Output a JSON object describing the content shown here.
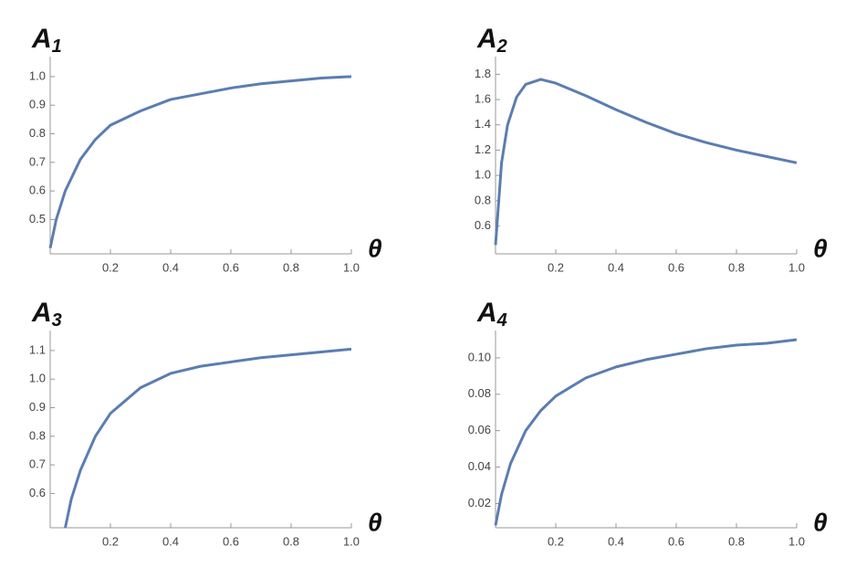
{
  "chart_data": [
    {
      "type": "line",
      "title": "A",
      "title_subscript": "1",
      "xlabel": "θ",
      "color": "#5b7db1",
      "x": [
        0,
        0.02,
        0.05,
        0.1,
        0.15,
        0.2,
        0.3,
        0.4,
        0.5,
        0.6,
        0.7,
        0.8,
        0.9,
        1.0
      ],
      "values": [
        0.4,
        0.5,
        0.6,
        0.71,
        0.78,
        0.83,
        0.88,
        0.92,
        0.94,
        0.96,
        0.975,
        0.985,
        0.995,
        1.0
      ],
      "xlim": [
        0,
        1.0
      ],
      "ylim": [
        0.38,
        1.07
      ],
      "xticks": [
        0.2,
        0.4,
        0.6,
        0.8,
        {
          "value": 1,
          "label": "1.0"
        }
      ],
      "yticks": [
        0.5,
        0.6,
        0.7,
        0.8,
        0.9,
        {
          "value": 1,
          "label": "1.0"
        }
      ]
    },
    {
      "type": "line",
      "title": "A",
      "title_subscript": "2",
      "xlabel": "θ",
      "color": "#5b7db1",
      "x": [
        0,
        0.02,
        0.04,
        0.07,
        0.1,
        0.15,
        0.2,
        0.3,
        0.4,
        0.5,
        0.6,
        0.7,
        0.8,
        0.9,
        1.0
      ],
      "values": [
        0.45,
        1.1,
        1.4,
        1.62,
        1.72,
        1.76,
        1.73,
        1.63,
        1.52,
        1.42,
        1.33,
        1.26,
        1.2,
        1.15,
        1.1
      ],
      "xlim": [
        0,
        1.0
      ],
      "ylim": [
        0.38,
        1.94
      ],
      "xticks": [
        0.2,
        0.4,
        0.6,
        0.8,
        {
          "value": 1,
          "label": "1.0"
        }
      ],
      "yticks": [
        0.6,
        0.8,
        {
          "value": 1,
          "label": "1.0"
        },
        1.2,
        1.4,
        1.6,
        1.8
      ]
    },
    {
      "type": "line",
      "title": "A",
      "title_subscript": "3",
      "xlabel": "θ",
      "color": "#5b7db1",
      "x": [
        0.05,
        0.07,
        0.1,
        0.15,
        0.2,
        0.3,
        0.4,
        0.5,
        0.6,
        0.7,
        0.8,
        0.9,
        1.0
      ],
      "values": [
        0.48,
        0.58,
        0.68,
        0.8,
        0.88,
        0.97,
        1.02,
        1.045,
        1.06,
        1.075,
        1.085,
        1.095,
        1.105
      ],
      "xlim": [
        0,
        1.0
      ],
      "ylim": [
        0.48,
        1.17
      ],
      "xticks": [
        0.2,
        0.4,
        0.6,
        0.8,
        {
          "value": 1,
          "label": "1.0"
        }
      ],
      "yticks": [
        0.6,
        0.7,
        0.8,
        0.9,
        {
          "value": 1,
          "label": "1.0"
        },
        1.1
      ]
    },
    {
      "type": "line",
      "title": "A",
      "title_subscript": "4",
      "xlabel": "θ",
      "color": "#5b7db1",
      "x": [
        0,
        0.02,
        0.05,
        0.1,
        0.15,
        0.2,
        0.3,
        0.4,
        0.5,
        0.6,
        0.7,
        0.8,
        0.9,
        1.0
      ],
      "values": [
        0.008,
        0.025,
        0.042,
        0.06,
        0.071,
        0.079,
        0.089,
        0.095,
        0.099,
        0.102,
        0.105,
        0.107,
        0.108,
        0.11
      ],
      "xlim": [
        0,
        1.0
      ],
      "ylim": [
        0.0067,
        0.115
      ],
      "xticks": [
        0.2,
        0.4,
        0.6,
        0.8,
        {
          "value": 1,
          "label": "1.0"
        }
      ],
      "yticks": [
        0.02,
        0.04,
        0.06,
        0.08,
        {
          "value": 0.1,
          "label": "0.10"
        }
      ]
    }
  ]
}
